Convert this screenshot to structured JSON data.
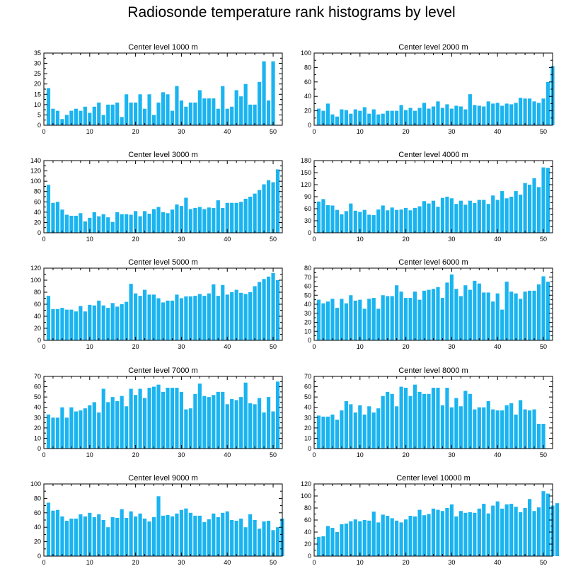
{
  "title": "Radiosonde temperature rank histograms by level",
  "bar_color": "#1ab4f0",
  "chart_data": [
    {
      "type": "bar",
      "title": "Center level 1000 m",
      "xlim": [
        0,
        52
      ],
      "ylim": [
        0,
        35
      ],
      "xticks": [
        0,
        10,
        20,
        30,
        40,
        50
      ],
      "yticks": [
        0,
        5,
        10,
        15,
        20,
        25,
        30,
        35
      ],
      "values": [
        18,
        8,
        7,
        3,
        5,
        7,
        8,
        7,
        9,
        6,
        9,
        11,
        5,
        10,
        10,
        11,
        4,
        15,
        11,
        11,
        15,
        8,
        15,
        5,
        11,
        16,
        15,
        7,
        19,
        12,
        9,
        11,
        11,
        17,
        13,
        13,
        13,
        8,
        19,
        8,
        9,
        17,
        14,
        20,
        10,
        10,
        21,
        31,
        12,
        31
      ]
    },
    {
      "type": "bar",
      "title": "Center level 2000 m",
      "xlim": [
        0,
        52
      ],
      "ylim": [
        0,
        100
      ],
      "xticks": [
        0,
        10,
        20,
        30,
        40,
        50
      ],
      "yticks": [
        0,
        20,
        40,
        60,
        80,
        100
      ],
      "values": [
        23,
        20,
        30,
        15,
        12,
        22,
        21,
        16,
        22,
        20,
        25,
        16,
        22,
        15,
        16,
        20,
        20,
        20,
        28,
        21,
        24,
        20,
        24,
        31,
        23,
        26,
        33,
        24,
        29,
        23,
        27,
        26,
        22,
        43,
        28,
        27,
        26,
        33,
        30,
        31,
        27,
        30,
        29,
        31,
        38,
        37,
        37,
        33,
        31,
        37,
        60,
        82
      ]
    },
    {
      "type": "bar",
      "title": "Center level 3000 m",
      "xlim": [
        0,
        52
      ],
      "ylim": [
        0,
        140
      ],
      "xticks": [
        0,
        10,
        20,
        30,
        40,
        50
      ],
      "yticks": [
        0,
        20,
        40,
        60,
        80,
        100,
        120,
        140
      ],
      "values": [
        93,
        58,
        60,
        45,
        35,
        33,
        33,
        38,
        22,
        29,
        40,
        32,
        36,
        30,
        21,
        40,
        36,
        36,
        35,
        42,
        32,
        42,
        37,
        46,
        50,
        40,
        38,
        45,
        55,
        52,
        68,
        46,
        48,
        50,
        46,
        49,
        48,
        63,
        48,
        58,
        58,
        58,
        60,
        66,
        70,
        76,
        83,
        94,
        102,
        98,
        123
      ]
    },
    {
      "type": "bar",
      "title": "Center level 4000 m",
      "xlim": [
        0,
        52
      ],
      "ylim": [
        0,
        180
      ],
      "xticks": [
        0,
        10,
        20,
        30,
        40,
        50
      ],
      "yticks": [
        0,
        30,
        60,
        90,
        120,
        150,
        180
      ],
      "values": [
        78,
        84,
        69,
        68,
        57,
        46,
        54,
        73,
        55,
        52,
        57,
        45,
        44,
        58,
        68,
        56,
        63,
        57,
        58,
        62,
        56,
        62,
        66,
        79,
        73,
        80,
        65,
        87,
        90,
        86,
        72,
        80,
        70,
        80,
        74,
        82,
        82,
        72,
        93,
        82,
        104,
        86,
        90,
        104,
        95,
        124,
        120,
        136,
        114,
        163,
        162
      ]
    },
    {
      "type": "bar",
      "title": "Center level 5000 m",
      "xlim": [
        0,
        52
      ],
      "ylim": [
        0,
        120
      ],
      "xticks": [
        0,
        10,
        20,
        30,
        40,
        50
      ],
      "yticks": [
        0,
        20,
        40,
        60,
        80,
        100,
        120
      ],
      "values": [
        74,
        52,
        52,
        54,
        51,
        51,
        48,
        57,
        48,
        59,
        58,
        66,
        58,
        54,
        62,
        56,
        60,
        64,
        94,
        78,
        74,
        84,
        76,
        76,
        70,
        63,
        66,
        66,
        76,
        70,
        73,
        73,
        74,
        77,
        74,
        78,
        93,
        74,
        92,
        76,
        80,
        84,
        79,
        77,
        80,
        90,
        97,
        102,
        106,
        112,
        100
      ]
    },
    {
      "type": "bar",
      "title": "Center level 6000 m",
      "xlim": [
        0,
        52
      ],
      "ylim": [
        0,
        80
      ],
      "xticks": [
        0,
        10,
        20,
        30,
        40,
        50
      ],
      "yticks": [
        0,
        10,
        20,
        30,
        40,
        50,
        60,
        70,
        80
      ],
      "values": [
        45,
        41,
        43,
        46,
        36,
        46,
        41,
        50,
        44,
        45,
        35,
        46,
        47,
        35,
        50,
        49,
        49,
        61,
        54,
        47,
        47,
        54,
        45,
        55,
        56,
        57,
        59,
        47,
        64,
        73,
        57,
        49,
        61,
        56,
        66,
        63,
        53,
        53,
        43,
        52,
        34,
        65,
        54,
        52,
        46,
        54,
        55,
        55,
        62,
        71,
        65
      ]
    },
    {
      "type": "bar",
      "title": "Center level 7000 m",
      "xlim": [
        0,
        52
      ],
      "ylim": [
        0,
        70
      ],
      "xticks": [
        0,
        10,
        20,
        30,
        40,
        50
      ],
      "yticks": [
        0,
        10,
        20,
        30,
        40,
        50,
        60,
        70
      ],
      "values": [
        33,
        30,
        30,
        40,
        30,
        40,
        36,
        37,
        39,
        42,
        45,
        35,
        58,
        45,
        50,
        46,
        51,
        41,
        58,
        52,
        58,
        49,
        59,
        60,
        62,
        55,
        59,
        59,
        59,
        55,
        38,
        39,
        53,
        63,
        51,
        50,
        52,
        55,
        55,
        43,
        48,
        47,
        50,
        64,
        44,
        43,
        49,
        35,
        50,
        36,
        65
      ]
    },
    {
      "type": "bar",
      "title": "Center level 8000 m",
      "xlim": [
        0,
        52
      ],
      "ylim": [
        0,
        70
      ],
      "xticks": [
        0,
        10,
        20,
        30,
        40,
        50
      ],
      "yticks": [
        0,
        10,
        20,
        30,
        40,
        50,
        60,
        70
      ],
      "values": [
        32,
        31,
        31,
        33,
        28,
        37,
        46,
        43,
        35,
        42,
        33,
        41,
        35,
        39,
        51,
        55,
        53,
        41,
        60,
        59,
        51,
        62,
        55,
        53,
        53,
        59,
        59,
        42,
        59,
        40,
        49,
        41,
        56,
        53,
        38,
        40,
        40,
        46,
        38,
        37,
        37,
        42,
        44,
        33,
        47,
        38,
        37,
        38,
        24,
        24
      ]
    },
    {
      "type": "bar",
      "title": "Center level 9000 m",
      "xlim": [
        0,
        52
      ],
      "ylim": [
        0,
        100
      ],
      "xticks": [
        0,
        10,
        20,
        30,
        40,
        50
      ],
      "yticks": [
        0,
        20,
        40,
        60,
        80,
        100
      ],
      "values": [
        74,
        63,
        64,
        55,
        49,
        52,
        52,
        58,
        55,
        60,
        54,
        58,
        50,
        40,
        54,
        53,
        65,
        53,
        62,
        55,
        59,
        52,
        48,
        54,
        83,
        56,
        57,
        55,
        59,
        64,
        66,
        60,
        56,
        56,
        47,
        51,
        59,
        54,
        60,
        62,
        50,
        49,
        52,
        40,
        58,
        50,
        38,
        48,
        49,
        36,
        40,
        52
      ]
    },
    {
      "type": "bar",
      "title": "Center level 10000 m",
      "xlim": [
        0,
        52
      ],
      "ylim": [
        0,
        120
      ],
      "xticks": [
        0,
        10,
        20,
        30,
        40,
        50
      ],
      "yticks": [
        0,
        20,
        40,
        60,
        80,
        100,
        120
      ],
      "values": [
        32,
        33,
        50,
        47,
        40,
        53,
        54,
        58,
        61,
        58,
        60,
        59,
        74,
        56,
        69,
        67,
        63,
        59,
        56,
        61,
        67,
        66,
        77,
        68,
        70,
        79,
        77,
        75,
        80,
        86,
        66,
        75,
        72,
        73,
        72,
        79,
        87,
        71,
        84,
        91,
        79,
        86,
        87,
        82,
        73,
        80,
        95,
        75,
        81,
        108,
        104,
        84,
        88
      ]
    }
  ]
}
